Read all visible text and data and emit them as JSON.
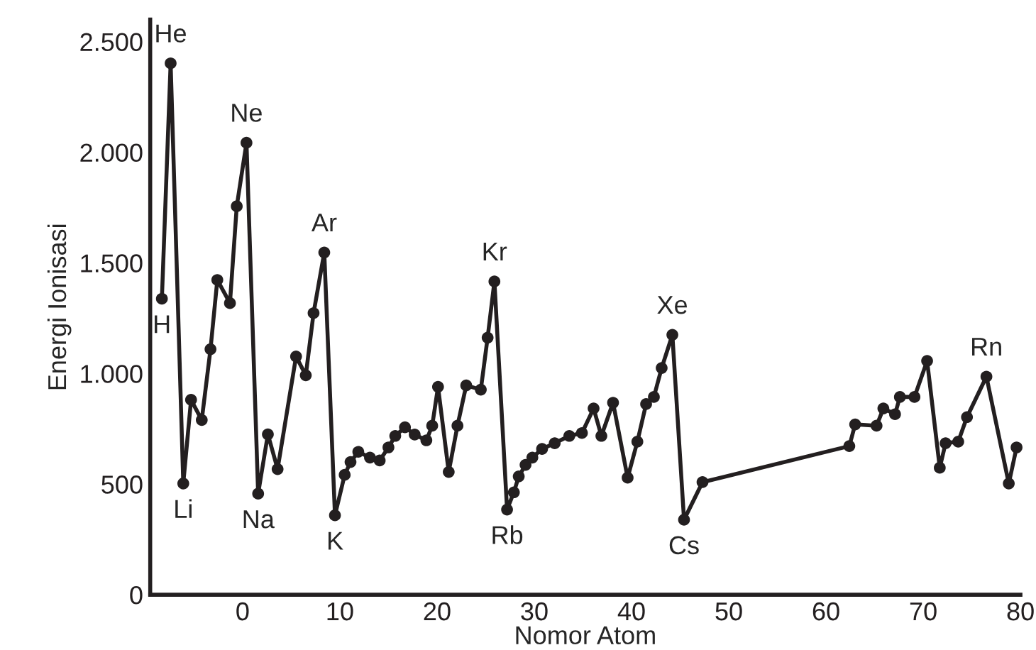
{
  "chart_data": {
    "type": "line",
    "xlabel": "Nomor Atom",
    "ylabel": "Energi Ionisasi",
    "xlim": [
      -9.5,
      80
    ],
    "xticks": [
      0,
      10,
      20,
      30,
      40,
      50,
      60,
      70,
      80
    ],
    "ylim": [
      0,
      2600
    ],
    "yticks": [
      0,
      500,
      {
        "value": 1000,
        "label": "1.000"
      },
      {
        "value": 1500,
        "label": "1.500"
      },
      {
        "value": 2000,
        "label": "2.000"
      },
      {
        "value": 2500,
        "label": "2.500"
      }
    ],
    "grid": false,
    "marker": "circle",
    "line_style": "solid",
    "series": [
      {
        "color": "#231f20",
        "x": [
          -8.3,
          -7.4,
          -6.1,
          -5.3,
          -4.2,
          -3.3,
          -2.6,
          -1.3,
          -0.6,
          0.4,
          1.6,
          2.6,
          3.6,
          5.5,
          6.5,
          7.3,
          8.4,
          9.5,
          10.5,
          11.1,
          11.9,
          13.1,
          14.1,
          15.0,
          15.7,
          16.7,
          17.7,
          18.9,
          19.5,
          20.1,
          21.2,
          22.1,
          23.0,
          24.5,
          25.2,
          25.9,
          27.2,
          27.9,
          28.4,
          29.1,
          29.8,
          30.8,
          32.1,
          33.6,
          34.9,
          36.1,
          36.9,
          38.1,
          39.6,
          40.6,
          41.5,
          42.3,
          43.1,
          44.2,
          45.4,
          47.3,
          62.4,
          63.0,
          65.2,
          65.9,
          67.1,
          67.6,
          69.1,
          70.4,
          71.7,
          72.3,
          73.6,
          74.5,
          76.5,
          78.8,
          79.6
        ],
        "values": [
          1338,
          2402,
          503,
          881,
          790,
          1110,
          1423,
          1318,
          1756,
          2043,
          457,
          725,
          568,
          1077,
          992,
          1273,
          1547,
          359,
          542,
          600,
          646,
          620,
          607,
          666,
          718,
          757,
          724,
          698,
          764,
          940,
          555,
          764,
          946,
          927,
          1162,
          1416,
          385,
          463,
          535,
          587,
          620,
          659,
          685,
          718,
          731,
          842,
          718,
          868,
          529,
          692,
          862,
          894,
          1025,
          1175,
          339,
          509,
          672,
          770,
          764,
          842,
          816,
          894,
          894,
          1057,
          574,
          685,
          692,
          803,
          986,
          503,
          666
        ]
      }
    ],
    "annotations": [
      {
        "text": "H",
        "x": -8.3,
        "y": 1338
      },
      {
        "text": "He",
        "x": -7.4,
        "y": 2402
      },
      {
        "text": "Li",
        "x": -6.1,
        "y": 503
      },
      {
        "text": "Ne",
        "x": 0.4,
        "y": 2043
      },
      {
        "text": "Na",
        "x": 1.6,
        "y": 457
      },
      {
        "text": "Ar",
        "x": 8.4,
        "y": 1547
      },
      {
        "text": "K",
        "x": 9.5,
        "y": 359
      },
      {
        "text": "Kr",
        "x": 25.9,
        "y": 1416
      },
      {
        "text": "Rb",
        "x": 27.2,
        "y": 385
      },
      {
        "text": "Xe",
        "x": 44.2,
        "y": 1175
      },
      {
        "text": "Cs",
        "x": 45.4,
        "y": 339
      },
      {
        "text": "Rn",
        "x": 76.5,
        "y": 986
      }
    ]
  }
}
